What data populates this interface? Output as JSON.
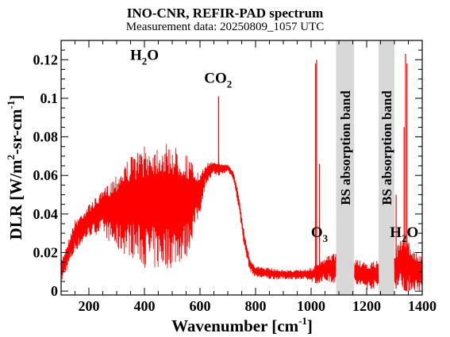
{
  "chart_data": {
    "type": "line",
    "title": "INO-CNR, REFIR-PAD spectrum",
    "subtitle": "Measurement data: 20250809_1057 UTC",
    "xlabel": "Wavenumber [cm",
    "xlabel_sup": "-1",
    "xlabel_end": "]",
    "ylabel_parts": [
      "DLR [W/m",
      "2",
      "-sr-cm",
      "-1",
      "]"
    ],
    "xlim": [
      100,
      1400
    ],
    "ylim": [
      -0.002,
      0.13
    ],
    "xticks": [
      200,
      400,
      600,
      800,
      1000,
      1200,
      1400
    ],
    "xtick_labels": [
      "200",
      "400",
      "600",
      "800",
      "1000",
      "1200",
      "1400"
    ],
    "yticks": [
      0,
      0.02,
      0.04,
      0.06,
      0.08,
      0.1,
      0.12
    ],
    "ytick_labels": [
      "0",
      "0.02",
      "0.04",
      "0.06",
      "0.08",
      "0.1",
      "0.12"
    ],
    "grid": false,
    "series_color": "#ff0000",
    "band_color": "#d8d8d8",
    "bands": [
      {
        "x0": 1090,
        "x1": 1155,
        "label": "BS absorption band"
      },
      {
        "x0": 1243,
        "x1": 1300,
        "label": "BS absorption band"
      }
    ],
    "annotations": [
      {
        "main": "H",
        "sub": "2",
        "tail": "O",
        "x": 400,
        "y": 0.12
      },
      {
        "main": "CO",
        "sub": "2",
        "tail": "",
        "x": 665,
        "y": 0.108
      },
      {
        "main": "O",
        "sub": "3",
        "tail": "",
        "x": 1030,
        "y": 0.028
      },
      {
        "main": "H",
        "sub": "2",
        "tail": "O",
        "x": 1335,
        "y": 0.028
      }
    ],
    "envelope": {
      "x": [
        100,
        150,
        200,
        250,
        300,
        350,
        400,
        450,
        500,
        550,
        600,
        620,
        650,
        680,
        700,
        720,
        740,
        760,
        780,
        800,
        850,
        900,
        950,
        1000,
        1020,
        1040,
        1080,
        1160,
        1200,
        1240,
        1300,
        1320,
        1340,
        1360,
        1400
      ],
      "upper": [
        0.016,
        0.037,
        0.045,
        0.052,
        0.062,
        0.07,
        0.075,
        0.077,
        0.076,
        0.072,
        0.06,
        0.066,
        0.068,
        0.066,
        0.066,
        0.062,
        0.05,
        0.03,
        0.017,
        0.013,
        0.012,
        0.011,
        0.011,
        0.012,
        0.014,
        0.016,
        0.02,
        0.017,
        0.014,
        0.016,
        0.02,
        0.026,
        0.03,
        0.022,
        0.018
      ],
      "lower": [
        0.004,
        0.02,
        0.028,
        0.03,
        0.02,
        0.018,
        0.012,
        0.01,
        0.012,
        0.016,
        0.04,
        0.055,
        0.06,
        0.06,
        0.062,
        0.058,
        0.042,
        0.022,
        0.01,
        0.007,
        0.006,
        0.006,
        0.006,
        0.005,
        0.004,
        0.005,
        0.004,
        0.002,
        0.001,
        0.001,
        0.001,
        0.002,
        0.0,
        0.0,
        0.0
      ]
    },
    "spikes": [
      {
        "x": 667,
        "y": 0.101
      },
      {
        "x": 1016,
        "y": 0.118
      },
      {
        "x": 1020,
        "y": 0.12
      },
      {
        "x": 1030,
        "y": 0.066
      },
      {
        "x": 1306,
        "y": 0.05
      },
      {
        "x": 1335,
        "y": 0.085
      },
      {
        "x": 1340,
        "y": 0.123
      },
      {
        "x": 1345,
        "y": 0.118
      },
      {
        "x": 1352,
        "y": 0.025
      }
    ]
  }
}
